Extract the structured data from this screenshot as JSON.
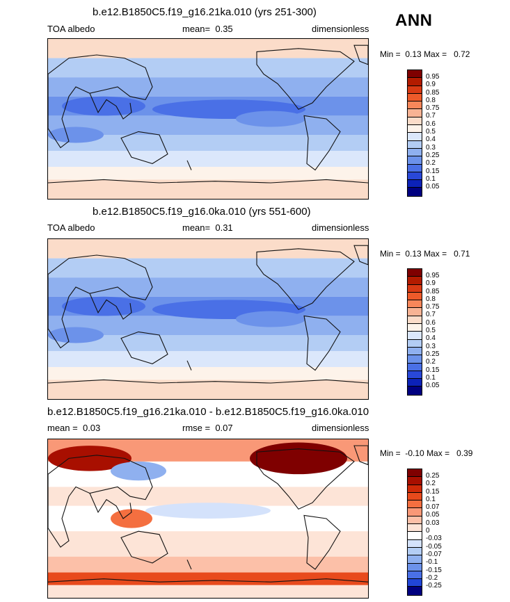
{
  "season": "ANN",
  "panels": [
    {
      "title": "b.e12.B1850C5.f19_g16.21ka.010 (yrs 251-300)",
      "left_label": "TOA albedo",
      "center_label": "mean=",
      "center_value": "0.35",
      "right_label": "dimensionless",
      "min_label": "Min =",
      "min_value": "0.13",
      "max_label": "Max =",
      "max_value": "0.72",
      "colorbar_labels": [
        "0.95",
        "0.9",
        "0.85",
        "0.8",
        "0.75",
        "0.7",
        "0.6",
        "0.5",
        "0.4",
        "0.3",
        "0.25",
        "0.2",
        "0.15",
        "0.1",
        "0.05"
      ]
    },
    {
      "title": "b.e12.B1850C5.f19_g16.0ka.010 (yrs 551-600)",
      "left_label": "TOA albedo",
      "center_label": "mean=",
      "center_value": "0.31",
      "right_label": "dimensionless",
      "min_label": "Min =",
      "min_value": "0.13",
      "max_label": "Max =",
      "max_value": "0.71",
      "colorbar_labels": [
        "0.95",
        "0.9",
        "0.85",
        "0.8",
        "0.75",
        "0.7",
        "0.6",
        "0.5",
        "0.4",
        "0.3",
        "0.25",
        "0.2",
        "0.15",
        "0.1",
        "0.05"
      ]
    },
    {
      "title": "b.e12.B1850C5.f19_g16.21ka.010 - b.e12.B1850C5.f19_g16.0ka.010",
      "left_label": "mean =",
      "left_value": "0.03",
      "center_label": "rmse =",
      "center_value": "0.07",
      "right_label": "dimensionless",
      "min_label": "Min =",
      "min_value": "-0.10",
      "max_label": "Max =",
      "max_value": "0.39",
      "colorbar_labels": [
        "0.25",
        "0.2",
        "0.15",
        "0.1",
        "0.07",
        "0.05",
        "0.03",
        "0",
        "-0.03",
        "-0.05",
        "-0.07",
        "-0.1",
        "-0.15",
        "-0.2",
        "-0.25"
      ]
    }
  ],
  "colors": {
    "seq_scale": [
      "#7f0000",
      "#b31b00",
      "#d93a14",
      "#ee5a2a",
      "#f7875a",
      "#f8b394",
      "#fbdcc9",
      "#fdf3ea",
      "#dbe7fb",
      "#b3cdf4",
      "#8fb0ef",
      "#6c92ea",
      "#4a70e6",
      "#2948d8",
      "#0c22b8",
      "#000080"
    ],
    "diff_scale": [
      "#7f0000",
      "#a80f00",
      "#cf2a08",
      "#e84a1c",
      "#f46f40",
      "#f99877",
      "#fcc0a8",
      "#fde4d7",
      "#ffffff",
      "#d4e2fb",
      "#b3cdf4",
      "#8fb0ef",
      "#6c92ea",
      "#4a70e6",
      "#2146d8",
      "#000080"
    ],
    "coast": "#111111"
  }
}
